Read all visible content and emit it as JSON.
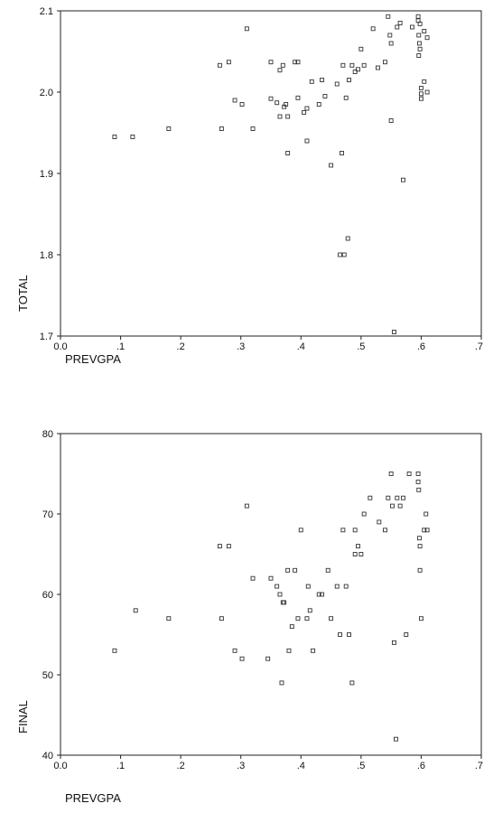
{
  "chart_data": [
    {
      "type": "scatter",
      "xlabel": "PREVGPA",
      "ylabel": "TOTAL",
      "xlim": [
        0.0,
        0.7
      ],
      "ylim": [
        1.7,
        2.1
      ],
      "x_ticks": [
        {
          "v": 0.0,
          "label": "0.0"
        },
        {
          "v": 0.1,
          "label": ".1"
        },
        {
          "v": 0.2,
          "label": ".2"
        },
        {
          "v": 0.3,
          "label": ".3"
        },
        {
          "v": 0.4,
          "label": ".4"
        },
        {
          "v": 0.5,
          "label": ".5"
        },
        {
          "v": 0.6,
          "label": ".6"
        },
        {
          "v": 0.7,
          "label": ".7"
        }
      ],
      "y_ticks": [
        {
          "v": 1.7,
          "label": "1.7"
        },
        {
          "v": 1.8,
          "label": "1.8"
        },
        {
          "v": 1.9,
          "label": "1.9"
        },
        {
          "v": 2.0,
          "label": "2.0"
        },
        {
          "v": 2.1,
          "label": "2.1"
        }
      ],
      "grid": false,
      "points": [
        [
          0.09,
          1.945
        ],
        [
          0.12,
          1.945
        ],
        [
          0.18,
          1.955
        ],
        [
          0.265,
          2.033
        ],
        [
          0.268,
          1.955
        ],
        [
          0.28,
          2.037
        ],
        [
          0.29,
          1.99
        ],
        [
          0.302,
          1.985
        ],
        [
          0.31,
          2.078
        ],
        [
          0.32,
          1.955
        ],
        [
          0.35,
          2.037
        ],
        [
          0.35,
          1.992
        ],
        [
          0.36,
          1.987
        ],
        [
          0.365,
          2.027
        ],
        [
          0.365,
          1.97
        ],
        [
          0.37,
          2.033
        ],
        [
          0.372,
          1.982
        ],
        [
          0.375,
          1.985
        ],
        [
          0.378,
          1.97
        ],
        [
          0.378,
          1.925
        ],
        [
          0.39,
          2.037
        ],
        [
          0.395,
          2.037
        ],
        [
          0.395,
          1.993
        ],
        [
          0.405,
          1.975
        ],
        [
          0.41,
          1.98
        ],
        [
          0.41,
          1.94
        ],
        [
          0.418,
          2.013
        ],
        [
          0.43,
          1.985
        ],
        [
          0.435,
          2.015
        ],
        [
          0.44,
          1.995
        ],
        [
          0.45,
          1.91
        ],
        [
          0.46,
          2.01
        ],
        [
          0.465,
          1.8
        ],
        [
          0.468,
          1.925
        ],
        [
          0.47,
          2.033
        ],
        [
          0.472,
          1.8
        ],
        [
          0.475,
          1.993
        ],
        [
          0.48,
          2.015
        ],
        [
          0.485,
          2.033
        ],
        [
          0.49,
          2.025
        ],
        [
          0.495,
          2.028
        ],
        [
          0.5,
          2.053
        ],
        [
          0.505,
          2.033
        ],
        [
          0.52,
          2.078
        ],
        [
          0.528,
          2.03
        ],
        [
          0.478,
          1.82
        ],
        [
          0.54,
          2.037
        ],
        [
          0.545,
          2.093
        ],
        [
          0.548,
          2.07
        ],
        [
          0.55,
          2.06
        ],
        [
          0.55,
          1.965
        ],
        [
          0.555,
          1.705
        ],
        [
          0.56,
          2.08
        ],
        [
          0.565,
          2.085
        ],
        [
          0.57,
          1.892
        ],
        [
          0.585,
          2.08
        ],
        [
          0.595,
          2.093
        ],
        [
          0.595,
          2.088
        ],
        [
          0.598,
          2.084
        ],
        [
          0.596,
          2.07
        ],
        [
          0.597,
          2.06
        ],
        [
          0.598,
          2.053
        ],
        [
          0.596,
          2.045
        ],
        [
          0.6,
          2.005
        ],
        [
          0.6,
          1.998
        ],
        [
          0.6,
          1.992
        ],
        [
          0.605,
          2.075
        ],
        [
          0.605,
          2.013
        ],
        [
          0.61,
          2.067
        ],
        [
          0.61,
          2.0
        ]
      ]
    },
    {
      "type": "scatter",
      "xlabel": "PREVGPA",
      "ylabel": "FINAL",
      "xlim": [
        0.0,
        0.7
      ],
      "ylim": [
        40,
        80
      ],
      "x_ticks": [
        {
          "v": 0.0,
          "label": "0.0"
        },
        {
          "v": 0.1,
          "label": ".1"
        },
        {
          "v": 0.2,
          "label": ".2"
        },
        {
          "v": 0.3,
          "label": ".3"
        },
        {
          "v": 0.4,
          "label": ".4"
        },
        {
          "v": 0.5,
          "label": ".5"
        },
        {
          "v": 0.6,
          "label": ".6"
        },
        {
          "v": 0.7,
          "label": ".7"
        }
      ],
      "y_ticks": [
        {
          "v": 40,
          "label": "40"
        },
        {
          "v": 50,
          "label": "50"
        },
        {
          "v": 60,
          "label": "60"
        },
        {
          "v": 70,
          "label": "70"
        },
        {
          "v": 80,
          "label": "80"
        }
      ],
      "grid": false,
      "points": [
        [
          0.09,
          53
        ],
        [
          0.125,
          58
        ],
        [
          0.18,
          57
        ],
        [
          0.265,
          66
        ],
        [
          0.268,
          57
        ],
        [
          0.28,
          66
        ],
        [
          0.29,
          53
        ],
        [
          0.302,
          52
        ],
        [
          0.31,
          71
        ],
        [
          0.32,
          62
        ],
        [
          0.35,
          62
        ],
        [
          0.345,
          52
        ],
        [
          0.36,
          61
        ],
        [
          0.365,
          60
        ],
        [
          0.368,
          49
        ],
        [
          0.37,
          59
        ],
        [
          0.372,
          59
        ],
        [
          0.378,
          63
        ],
        [
          0.38,
          53
        ],
        [
          0.385,
          56
        ],
        [
          0.39,
          63
        ],
        [
          0.395,
          57
        ],
        [
          0.4,
          68
        ],
        [
          0.41,
          57
        ],
        [
          0.412,
          61
        ],
        [
          0.415,
          58
        ],
        [
          0.42,
          53
        ],
        [
          0.43,
          60
        ],
        [
          0.435,
          60
        ],
        [
          0.445,
          63
        ],
        [
          0.45,
          57
        ],
        [
          0.46,
          61
        ],
        [
          0.465,
          55
        ],
        [
          0.47,
          68
        ],
        [
          0.475,
          61
        ],
        [
          0.48,
          55
        ],
        [
          0.485,
          49
        ],
        [
          0.49,
          68
        ],
        [
          0.49,
          65
        ],
        [
          0.495,
          66
        ],
        [
          0.5,
          65
        ],
        [
          0.505,
          70
        ],
        [
          0.515,
          72
        ],
        [
          0.53,
          69
        ],
        [
          0.54,
          68
        ],
        [
          0.545,
          72
        ],
        [
          0.55,
          75
        ],
        [
          0.552,
          71
        ],
        [
          0.555,
          54
        ],
        [
          0.558,
          42
        ],
        [
          0.56,
          72
        ],
        [
          0.565,
          71
        ],
        [
          0.57,
          72
        ],
        [
          0.575,
          55
        ],
        [
          0.58,
          75
        ],
        [
          0.595,
          75
        ],
        [
          0.595,
          74
        ],
        [
          0.596,
          73
        ],
        [
          0.597,
          67
        ],
        [
          0.598,
          66
        ],
        [
          0.598,
          63
        ],
        [
          0.6,
          57
        ],
        [
          0.605,
          68
        ],
        [
          0.608,
          70
        ],
        [
          0.61,
          68
        ]
      ]
    }
  ]
}
